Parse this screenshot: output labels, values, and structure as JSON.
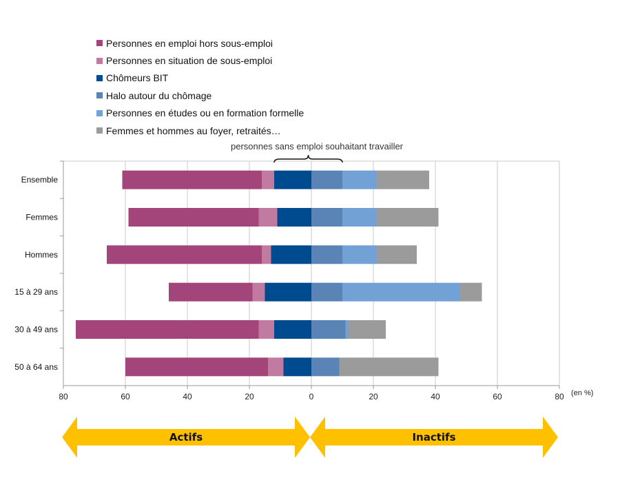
{
  "chart_data": {
    "type": "bar",
    "orientation": "horizontal",
    "stacked": true,
    "diverging": true,
    "categories": [
      "Ensemble",
      "Femmes",
      "Hommes",
      "15 à 29 ans",
      "30 à 49 ans",
      "50 à 64 ans"
    ],
    "left_series": [
      {
        "name": "Chômeurs BIT",
        "color": "#004A8F",
        "values": [
          12,
          11,
          13,
          15,
          12,
          9
        ]
      },
      {
        "name": "Personnes en situation de sous-emploi",
        "color": "#C27BA0",
        "values": [
          4,
          6,
          3,
          4,
          5,
          5
        ]
      },
      {
        "name": "Personnes en emploi hors sous-emploi",
        "color": "#A3457A",
        "values": [
          45,
          42,
          50,
          27,
          59,
          46
        ]
      }
    ],
    "right_series": [
      {
        "name": "Halo autour du chômage",
        "color": "#5B84B6",
        "values": [
          10,
          10,
          10,
          10,
          11,
          9
        ]
      },
      {
        "name": "Personnes en études ou en formation formelle",
        "color": "#72A1D6",
        "values": [
          11,
          11,
          11,
          38,
          1,
          0
        ]
      },
      {
        "name": "Femmes et hommes au foyer, retraités…",
        "color": "#9B9B9B",
        "values": [
          17,
          20,
          13,
          7,
          12,
          32
        ]
      }
    ],
    "x_ticks": [
      "80",
      "60",
      "40",
      "20",
      "0",
      "20",
      "40",
      "60",
      "80"
    ],
    "xlim": [
      -80,
      80
    ],
    "grid": true,
    "unit": "(en %)",
    "bracket_label": "personnes sans emploi souhaitant travailler",
    "arrows": [
      {
        "label": "Actifs",
        "color": "#FFC000"
      },
      {
        "label": "Inactifs",
        "color": "#FFC000"
      }
    ]
  },
  "legend": [
    {
      "label": "Personnes en emploi hors sous-emploi",
      "color": "#A3457A"
    },
    {
      "label": "Personnes en situation de sous-emploi",
      "color": "#C27BA0"
    },
    {
      "label": "Chômeurs BIT",
      "color": "#004A8F"
    },
    {
      "label": "Halo autour du chômage",
      "color": "#5B84B6"
    },
    {
      "label": "Personnes en études ou en formation formelle",
      "color": "#72A1D6"
    },
    {
      "label": "Femmes et hommes au foyer, retraités…",
      "color": "#9B9B9B"
    }
  ]
}
